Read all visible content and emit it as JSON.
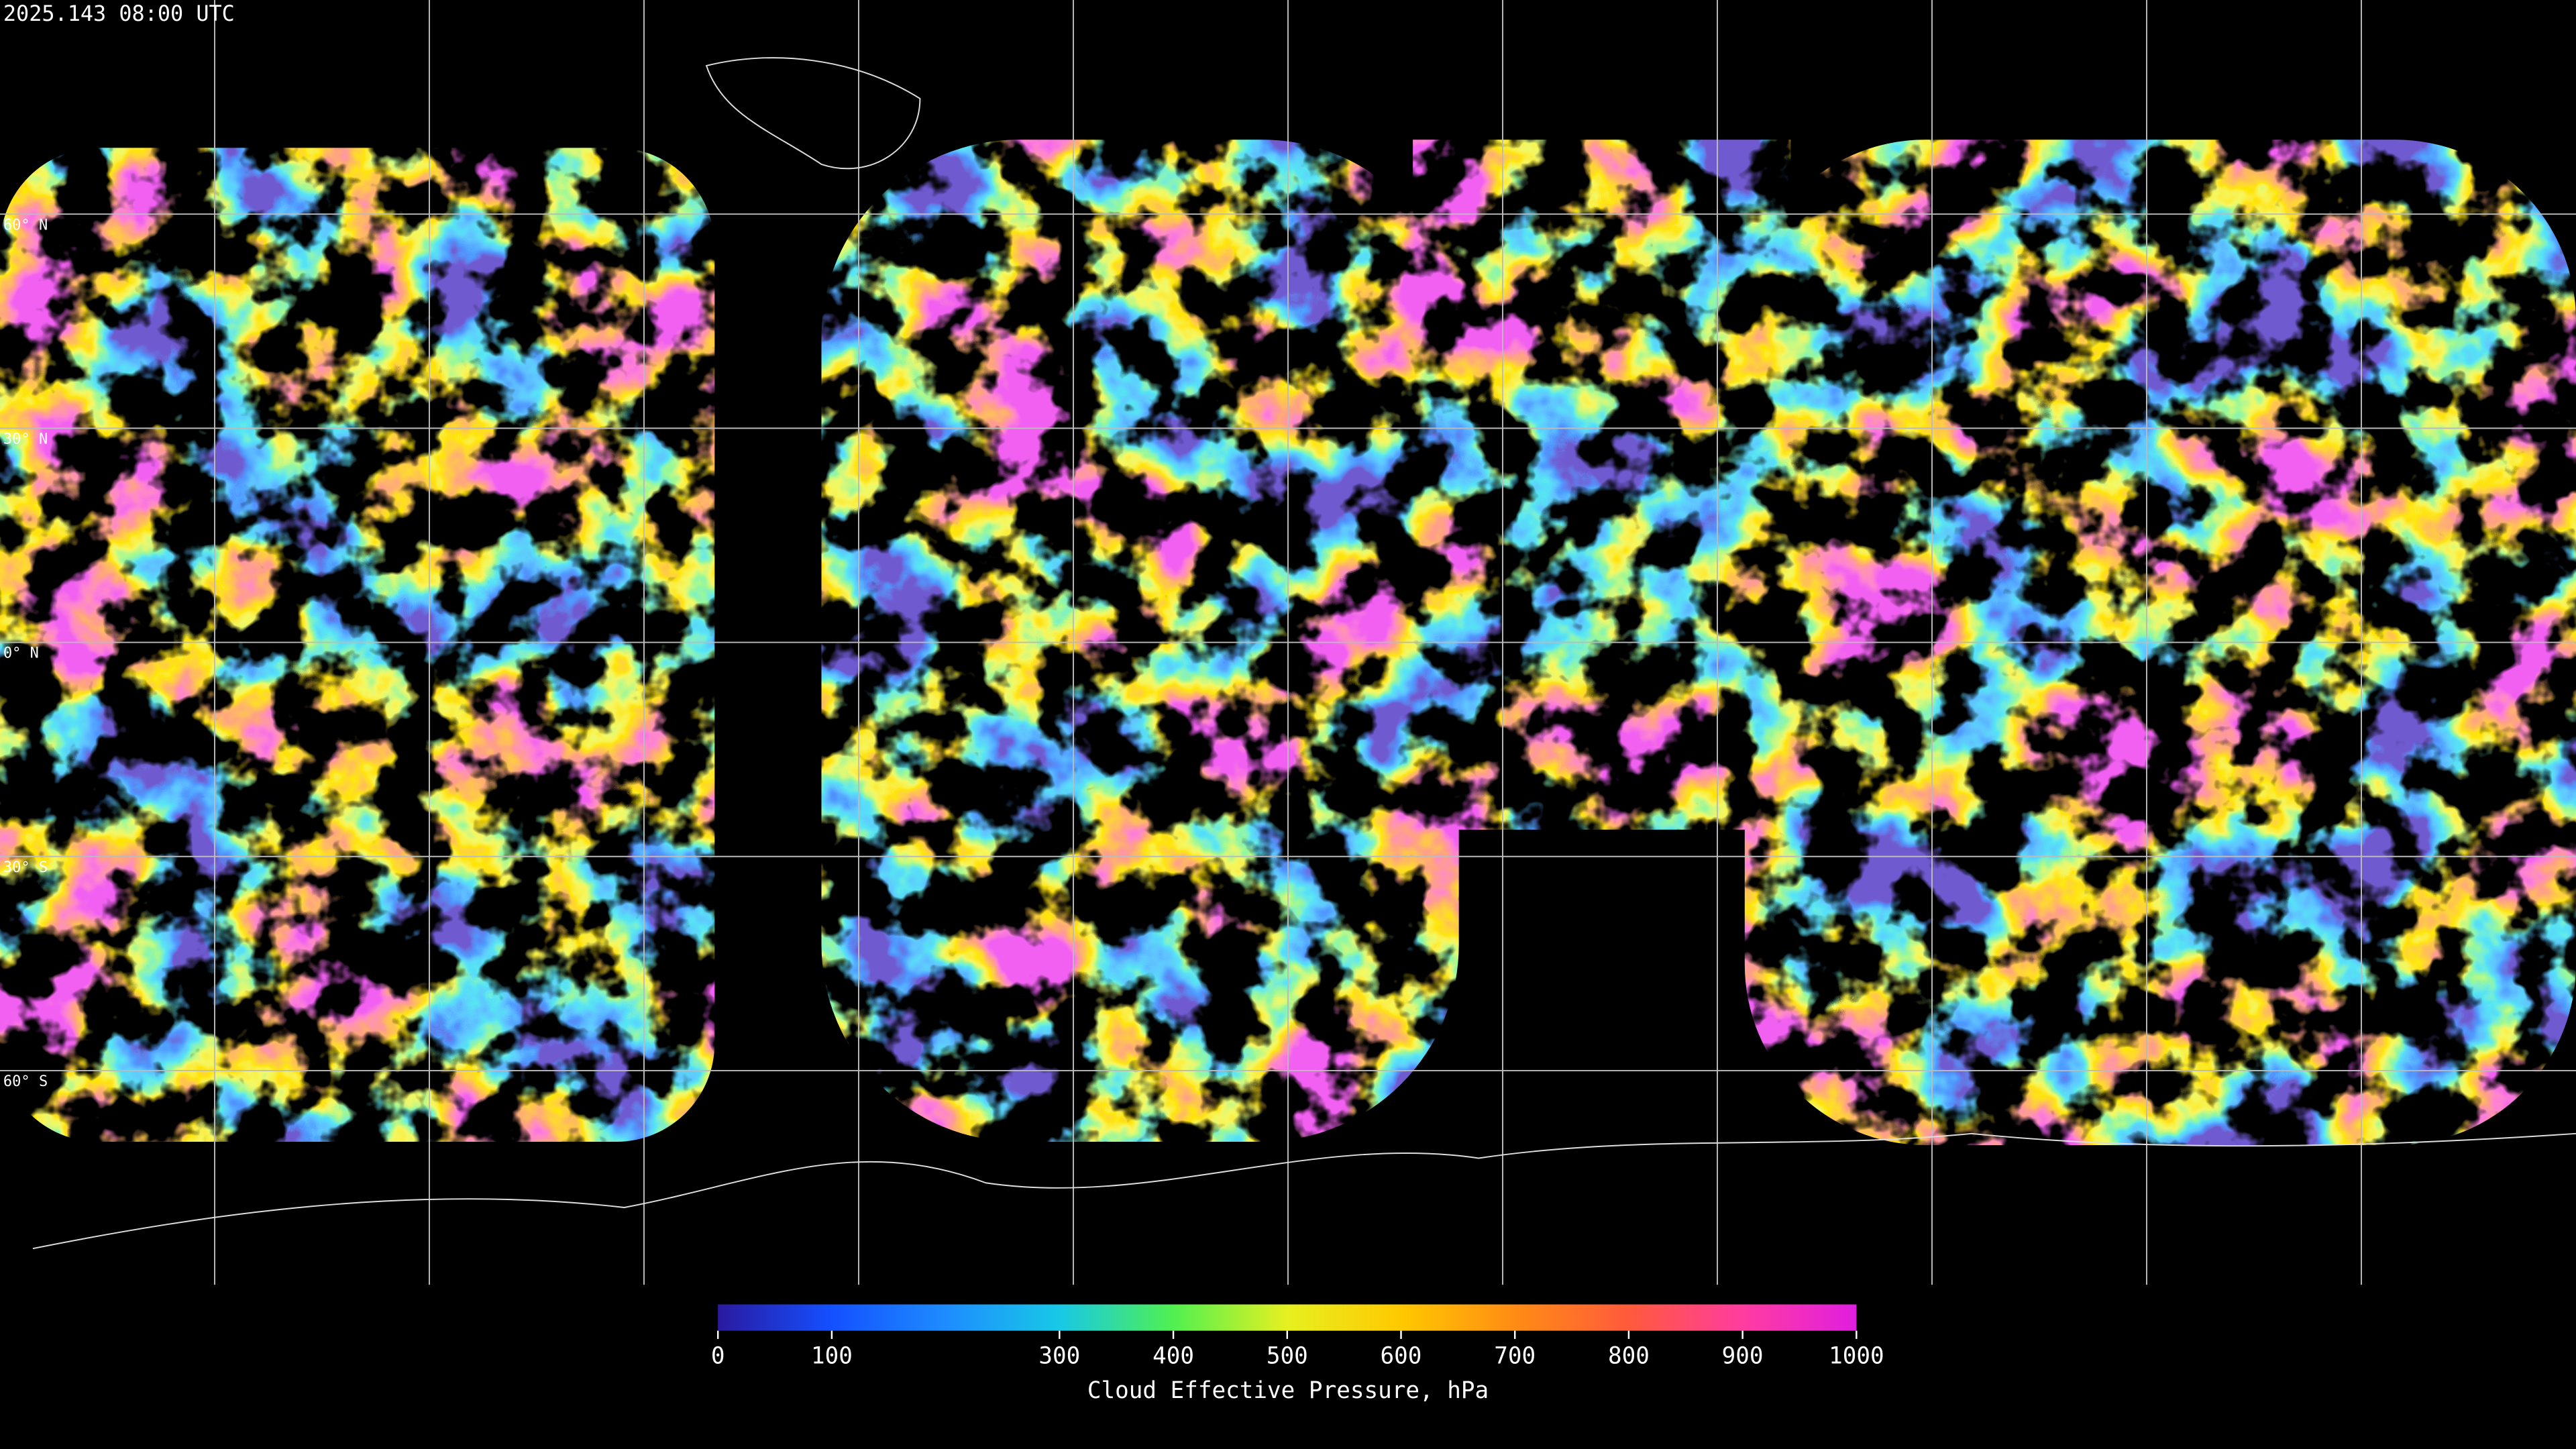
{
  "timestamp": "2025.143 08:00 UTC",
  "map": {
    "lat_ticks": [
      {
        "value": 60,
        "label": "60° N"
      },
      {
        "value": 30,
        "label": "30° N"
      },
      {
        "value": 0,
        "label": "0° N"
      },
      {
        "value": -30,
        "label": "30° S"
      },
      {
        "value": -60,
        "label": "60° S"
      }
    ]
  },
  "colorbar": {
    "label": "Cloud Effective Pressure, hPa",
    "lim": [
      0,
      1000
    ],
    "ticks": [
      0,
      100,
      300,
      400,
      500,
      600,
      700,
      800,
      900,
      1000
    ],
    "colors": [
      "#2a1aa0",
      "#1450ff",
      "#1e8cff",
      "#18c8e6",
      "#50f050",
      "#e6f020",
      "#ffc800",
      "#ff8c14",
      "#ff5a3c",
      "#ff3ca0",
      "#e01ee0"
    ]
  }
}
